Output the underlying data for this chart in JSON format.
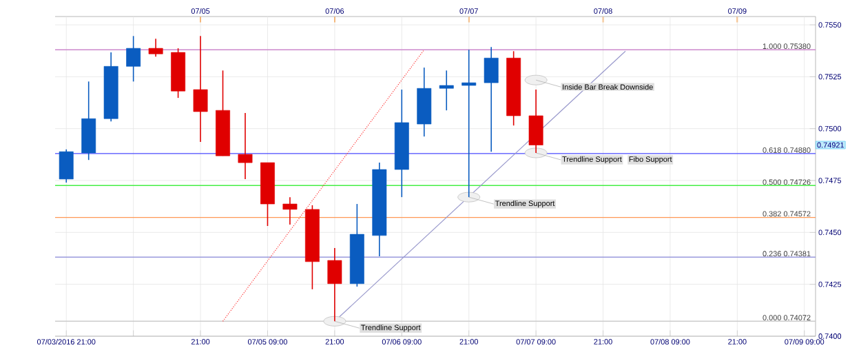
{
  "chart_data": {
    "type": "candlestick",
    "x": [
      "2016-07-03T21:00",
      "2016-07-04T01:00",
      "2016-07-04T05:00",
      "2016-07-04T09:00",
      "2016-07-04T13:00",
      "2016-07-04T17:00",
      "2016-07-04T21:00",
      "2016-07-05T01:00",
      "2016-07-05T05:00",
      "2016-07-05T09:00",
      "2016-07-05T13:00",
      "2016-07-05T17:00",
      "2016-07-05T21:00",
      "2016-07-06T01:00",
      "2016-07-06T05:00",
      "2016-07-06T09:00",
      "2016-07-06T13:00",
      "2016-07-06T17:00",
      "2016-07-06T21:00",
      "2016-07-07T01:00",
      "2016-07-07T05:00",
      "2016-07-07T09:00"
    ],
    "ohlc": [
      [
        0.74757,
        0.749,
        0.7474,
        0.74889
      ],
      [
        0.74883,
        0.75227,
        0.74849,
        0.75048
      ],
      [
        0.75048,
        0.75367,
        0.75035,
        0.753
      ],
      [
        0.753,
        0.75446,
        0.75227,
        0.75387
      ],
      [
        0.75387,
        0.75433,
        0.75347,
        0.7536
      ],
      [
        0.75367,
        0.75387,
        0.75148,
        0.75181
      ],
      [
        0.75188,
        0.75446,
        0.74936,
        0.75082
      ],
      [
        0.75088,
        0.7528,
        0.74869,
        0.74869
      ],
      [
        0.74876,
        0.75075,
        0.74757,
        0.74836
      ],
      [
        0.74836,
        0.74836,
        0.74531,
        0.74637
      ],
      [
        0.74637,
        0.7467,
        0.74538,
        0.74611
      ],
      [
        0.74611,
        0.74631,
        0.74226,
        0.74359
      ],
      [
        0.74365,
        0.74425,
        0.74072,
        0.74253
      ],
      [
        0.74253,
        0.74637,
        0.74239,
        0.74491
      ],
      [
        0.74485,
        0.74836,
        0.74385,
        0.74803
      ],
      [
        0.74803,
        0.75188,
        0.7467,
        0.75029
      ],
      [
        0.75022,
        0.75294,
        0.74962,
        0.75194
      ],
      [
        0.75194,
        0.7528,
        0.75088,
        0.75208
      ],
      [
        0.75208,
        0.7538,
        0.7467,
        0.75221
      ],
      [
        0.75221,
        0.75393,
        0.74889,
        0.7534
      ],
      [
        0.7534,
        0.75373,
        0.75015,
        0.75062
      ],
      [
        0.75062,
        0.75188,
        0.74883,
        0.74921
      ]
    ],
    "colors": [
      "#0a5cc0",
      "#0a5cc0",
      "#0a5cc0",
      "#0a5cc0",
      "#e00000",
      "#e00000",
      "#e00000",
      "#e00000",
      "#e00000",
      "#e00000",
      "#e00000",
      "#e00000",
      "#e00000",
      "#0a5cc0",
      "#0a5cc0",
      "#0a5cc0",
      "#0a5cc0",
      "#0a5cc0",
      "#0a5cc0",
      "#0a5cc0",
      "#e00000",
      "#e00000"
    ],
    "series": [
      {
        "type": "line",
        "color": "#ff3030",
        "line_style": "dotted",
        "x": [
          "2016-07-05T01:00",
          "2016-07-06T13:00"
        ],
        "values": [
          0.74072,
          0.7538
        ]
      },
      {
        "type": "line",
        "color": "#9999cc",
        "line_style": "solid",
        "x": [
          "2016-07-05T21:00",
          "2016-07-08T01:00"
        ],
        "values": [
          0.74072,
          0.75373
        ]
      }
    ],
    "ref_lines": [
      {
        "axis": "y",
        "value": 0.7538,
        "label": "1.000 0.75380",
        "color": "#cc88cc"
      },
      {
        "axis": "y",
        "value": 0.7488,
        "label": "0.618 0.74880",
        "color": "#4a4aff"
      },
      {
        "axis": "y",
        "value": 0.74726,
        "label": "0.500 0.74726",
        "color": "#44ee44"
      },
      {
        "axis": "y",
        "value": 0.74572,
        "label": "0.382 0.74572",
        "color": "#ff9955"
      },
      {
        "axis": "y",
        "value": 0.74381,
        "label": "0.236 0.74381",
        "color": "#9999dd"
      },
      {
        "axis": "y",
        "value": 0.74072,
        "label": "0.000 0.74072",
        "color": "#cccccc"
      }
    ],
    "annotations": [
      {
        "text": "Trendline Support",
        "x": "2016-07-05T21:00",
        "y": 0.74072
      },
      {
        "text": "Trendline Support",
        "x": "2016-07-06T21:00",
        "y": 0.7467
      },
      {
        "text": "Trendline Support",
        "x": "2016-07-07T09:00",
        "y": 0.74883
      },
      "Fibo Support",
      {
        "text": "Inside Bar Break Downside",
        "x": "2016-07-07T09:00",
        "y": 0.75234
      },
      "0.74921"
    ],
    "xlim": [
      "2016-07-03T19:00",
      "2016-07-09T11:00"
    ],
    "xticks": [
      {
        "value": "2016-07-03T21:00",
        "label": "07/03/2016 21:00"
      },
      {
        "value": "2016-07-04T09:00",
        "label": null
      },
      {
        "value": "2016-07-04T21:00",
        "label": "21:00"
      },
      {
        "value": "2016-07-05T09:00",
        "label": "07/05 09:00"
      },
      {
        "value": "2016-07-05T21:00",
        "label": "21:00"
      },
      {
        "value": "2016-07-06T09:00",
        "label": "07/06 09:00"
      },
      {
        "value": "2016-07-06T21:00",
        "label": "21:00"
      },
      {
        "value": "2016-07-07T09:00",
        "label": "07/07 09:00"
      },
      {
        "value": "2016-07-07T21:00",
        "label": "21:00"
      },
      {
        "value": "2016-07-08T09:00",
        "label": "07/08 09:00"
      },
      {
        "value": "2016-07-08T21:00",
        "label": "21:00"
      },
      {
        "value": "2016-07-09T09:00",
        "label": "07/09 09:00"
      }
    ],
    "x2lim": [
      "2016-07-03T19:00",
      "2016-07-09T11:00"
    ],
    "x2ticks": [
      {
        "value": "2016-07-04T21:00",
        "label": "07/05"
      },
      {
        "value": "2016-07-05T21:00",
        "label": "07/06"
      },
      {
        "value": "2016-07-06T21:00",
        "label": "07/07"
      },
      {
        "value": "2016-07-07T21:00",
        "label": "07/08"
      },
      {
        "value": "2016-07-08T21:00",
        "label": "07/09"
      }
    ],
    "ylim": [
      0.74,
      0.7554
    ],
    "yticks": [
      {
        "value": 0.74,
        "label": "0.7400"
      },
      {
        "value": 0.7425,
        "label": "0.7425"
      },
      {
        "value": 0.745,
        "label": "0.7450"
      },
      {
        "value": 0.7475,
        "label": "0.7475"
      },
      {
        "value": 0.75,
        "label": "0.7500"
      },
      {
        "value": 0.7525,
        "label": "0.7525"
      },
      {
        "value": 0.755,
        "label": "0.7550"
      }
    ],
    "grid": true
  }
}
